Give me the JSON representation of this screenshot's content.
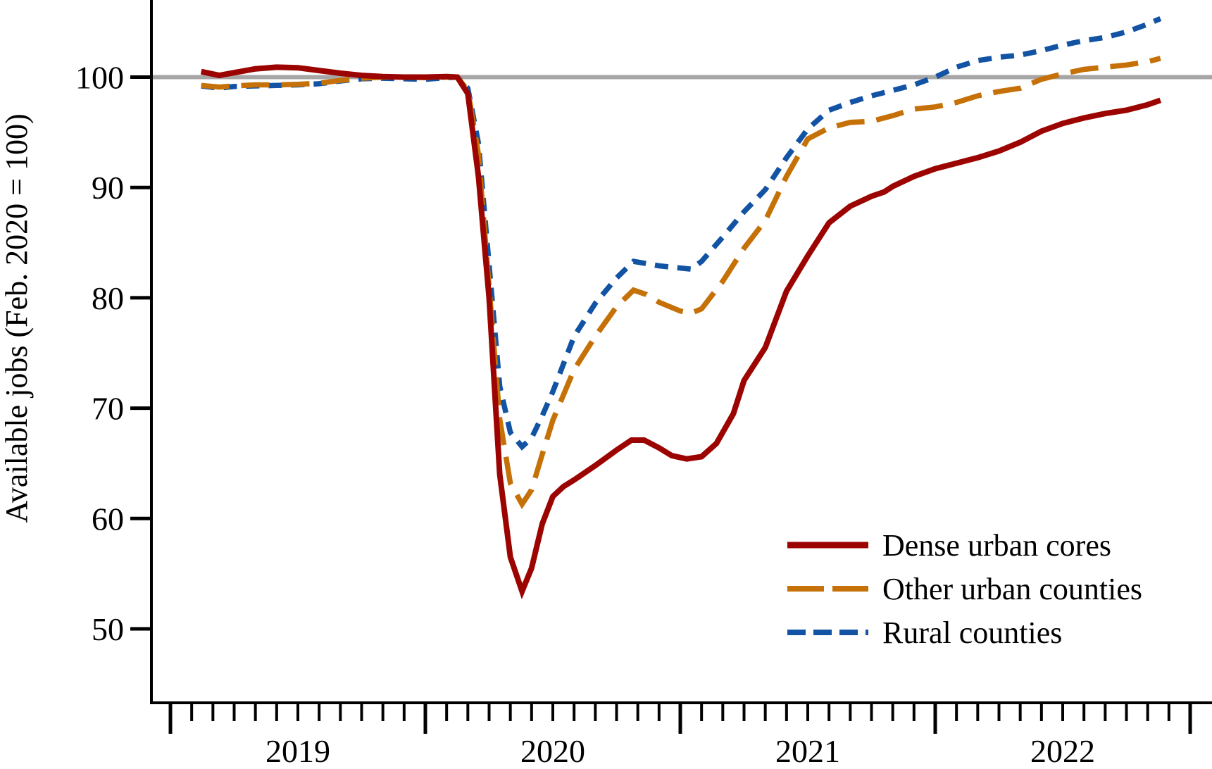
{
  "figure": {
    "ylabel": "Available jobs (Feb. 2020 = 100)",
    "colors": {
      "axis": "#000000",
      "reference_line": "#a6a6a6",
      "background": "#ffffff",
      "dense_urban_cores": "#9b0400",
      "other_urban_counties": "#c57107",
      "rural_counties": "#1253a4"
    }
  },
  "legend": {
    "position": "bottom-right-inside",
    "items": [
      {
        "label": "Dense urban cores",
        "color": "#9b0400",
        "pattern": "solid"
      },
      {
        "label": "Other urban counties",
        "color": "#c57107",
        "pattern": "long-dash"
      },
      {
        "label": "Rural counties",
        "color": "#1253a4",
        "pattern": "short-dash"
      }
    ]
  },
  "chart_data": {
    "type": "line",
    "title": "",
    "xlabel": "",
    "ylabel": "Available jobs (Feb. 2020 = 100)",
    "x_unit": "months since 2019-01-01 (0 = Jan 1 2019; data span ~Feb 2019 to ~Nov 2022)",
    "x_range_months": [
      0,
      48
    ],
    "ylim_visible": [
      43,
      107
    ],
    "yticks": [
      100,
      90,
      80,
      70,
      60,
      50
    ],
    "grid": "single horizontal reference line at y=100",
    "reference_line_y": 100,
    "year_major_tick_months": [
      0,
      12,
      24,
      36,
      48
    ],
    "minor_ticks": "every month",
    "year_labels": [
      {
        "label": "2019",
        "center_month": 6
      },
      {
        "label": "2020",
        "center_month": 18
      },
      {
        "label": "2021",
        "center_month": 30
      },
      {
        "label": "2022",
        "center_month": 42
      }
    ],
    "series": [
      {
        "name": "Dense urban cores",
        "color": "#9b0400",
        "pattern": "solid",
        "points": [
          [
            1.45,
            100.5
          ],
          [
            2.3,
            100.15
          ],
          [
            3,
            100.4
          ],
          [
            4,
            100.75
          ],
          [
            5,
            100.9
          ],
          [
            6,
            100.85
          ],
          [
            7,
            100.6
          ],
          [
            8,
            100.35
          ],
          [
            9,
            100.15
          ],
          [
            10,
            100.05
          ],
          [
            11,
            100
          ],
          [
            12,
            100
          ],
          [
            13,
            100.05
          ],
          [
            13.5,
            100
          ],
          [
            14,
            98.5
          ],
          [
            14.5,
            91
          ],
          [
            15,
            80
          ],
          [
            15.5,
            64
          ],
          [
            16,
            56.5
          ],
          [
            16.55,
            53.4
          ],
          [
            17,
            55.5
          ],
          [
            17.5,
            59.5
          ],
          [
            18,
            62
          ],
          [
            18.5,
            62.9
          ],
          [
            19,
            63.5
          ],
          [
            20,
            64.8
          ],
          [
            21,
            66.2
          ],
          [
            21.7,
            67.1
          ],
          [
            22.3,
            67.1
          ],
          [
            23,
            66.4
          ],
          [
            23.6,
            65.7
          ],
          [
            24.3,
            65.4
          ],
          [
            25,
            65.6
          ],
          [
            25.7,
            66.8
          ],
          [
            26.5,
            69.5
          ],
          [
            27,
            72.5
          ],
          [
            28,
            75.5
          ],
          [
            29,
            80.6
          ],
          [
            30,
            83.8
          ],
          [
            31,
            86.8
          ],
          [
            32,
            88.3
          ],
          [
            33,
            89.2
          ],
          [
            33.6,
            89.6
          ],
          [
            34,
            90.1
          ],
          [
            35,
            91
          ],
          [
            36,
            91.7
          ],
          [
            37,
            92.2
          ],
          [
            38,
            92.7
          ],
          [
            39,
            93.3
          ],
          [
            40,
            94.1
          ],
          [
            41,
            95.1
          ],
          [
            42,
            95.8
          ],
          [
            43,
            96.3
          ],
          [
            44,
            96.7
          ],
          [
            45,
            97
          ],
          [
            46,
            97.5
          ],
          [
            46.6,
            97.9
          ]
        ]
      },
      {
        "name": "Other urban counties",
        "color": "#c57107",
        "pattern": "long-dash",
        "points": [
          [
            1.45,
            99.25
          ],
          [
            2.3,
            99.1
          ],
          [
            3,
            99.2
          ],
          [
            4,
            99.3
          ],
          [
            5,
            99.3
          ],
          [
            6,
            99.35
          ],
          [
            7,
            99.45
          ],
          [
            8,
            99.7
          ],
          [
            9,
            99.9
          ],
          [
            10,
            100
          ],
          [
            11,
            100
          ],
          [
            12,
            99.95
          ],
          [
            13,
            100
          ],
          [
            13.5,
            100
          ],
          [
            14,
            98.8
          ],
          [
            14.5,
            93
          ],
          [
            15,
            81
          ],
          [
            15.5,
            69
          ],
          [
            16,
            63.2
          ],
          [
            16.55,
            61.3
          ],
          [
            17,
            62.6
          ],
          [
            17.5,
            65.8
          ],
          [
            18,
            68.9
          ],
          [
            19,
            73.5
          ],
          [
            20,
            76.5
          ],
          [
            21,
            79.2
          ],
          [
            21.8,
            80.7
          ],
          [
            22.4,
            80.3
          ],
          [
            23,
            79.6
          ],
          [
            24,
            78.8
          ],
          [
            24.5,
            78.6
          ],
          [
            25,
            79
          ],
          [
            26,
            81.5
          ],
          [
            27,
            84.5
          ],
          [
            28,
            87
          ],
          [
            29,
            91
          ],
          [
            30,
            94.4
          ],
          [
            31,
            95.4
          ],
          [
            32,
            95.9
          ],
          [
            33,
            96
          ],
          [
            34,
            96.5
          ],
          [
            35,
            97.1
          ],
          [
            36,
            97.3
          ],
          [
            37,
            97.7
          ],
          [
            38,
            98.3
          ],
          [
            39,
            98.7
          ],
          [
            40,
            99
          ],
          [
            41,
            99.8
          ],
          [
            42,
            100.3
          ],
          [
            43,
            100.7
          ],
          [
            44,
            100.9
          ],
          [
            45,
            101.1
          ],
          [
            46,
            101.4
          ],
          [
            46.6,
            101.7
          ]
        ]
      },
      {
        "name": "Rural counties",
        "color": "#1253a4",
        "pattern": "short-dash",
        "points": [
          [
            1.45,
            99.2
          ],
          [
            2.3,
            99
          ],
          [
            3,
            99.15
          ],
          [
            4,
            99.2
          ],
          [
            5,
            99.25
          ],
          [
            6,
            99.3
          ],
          [
            7,
            99.4
          ],
          [
            8,
            99.65
          ],
          [
            9,
            99.85
          ],
          [
            10,
            99.9
          ],
          [
            11,
            99.85
          ],
          [
            12,
            99.8
          ],
          [
            13,
            99.95
          ],
          [
            13.5,
            100
          ],
          [
            14,
            99
          ],
          [
            14.5,
            94
          ],
          [
            15,
            83
          ],
          [
            15.5,
            72
          ],
          [
            16,
            67.8
          ],
          [
            16.55,
            66.5
          ],
          [
            17,
            67.3
          ],
          [
            17.5,
            69.3
          ],
          [
            18,
            71.5
          ],
          [
            19,
            76.5
          ],
          [
            20,
            79.5
          ],
          [
            21,
            81.8
          ],
          [
            21.8,
            83.3
          ],
          [
            22.4,
            83.1
          ],
          [
            23,
            82.9
          ],
          [
            24,
            82.7
          ],
          [
            24.5,
            82.6
          ],
          [
            25,
            83.3
          ],
          [
            26,
            85.5
          ],
          [
            27,
            87.8
          ],
          [
            28,
            89.8
          ],
          [
            29,
            92.7
          ],
          [
            30,
            95.3
          ],
          [
            31,
            97
          ],
          [
            32,
            97.7
          ],
          [
            33,
            98.3
          ],
          [
            34,
            98.8
          ],
          [
            35,
            99.3
          ],
          [
            36,
            100
          ],
          [
            37,
            100.9
          ],
          [
            38,
            101.5
          ],
          [
            39,
            101.8
          ],
          [
            40,
            102
          ],
          [
            41,
            102.4
          ],
          [
            42,
            102.9
          ],
          [
            43,
            103.3
          ],
          [
            44,
            103.6
          ],
          [
            45,
            104.1
          ],
          [
            46,
            104.8
          ],
          [
            46.6,
            105.3
          ]
        ]
      }
    ]
  }
}
